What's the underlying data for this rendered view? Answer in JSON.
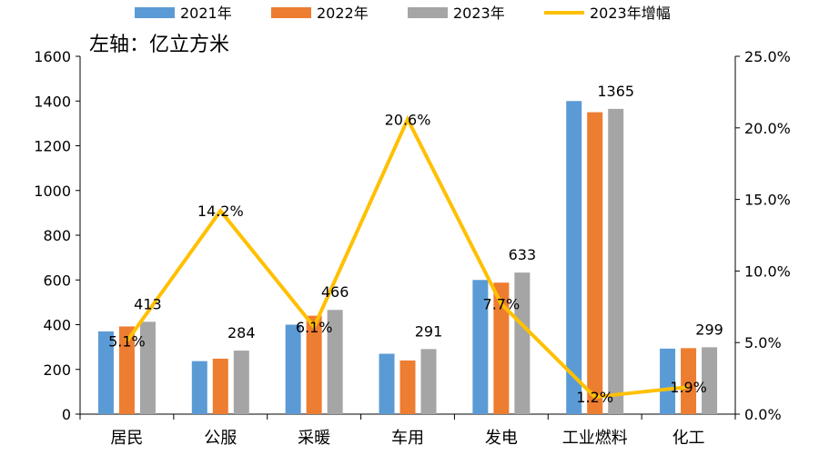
{
  "chart_data": {
    "type": "bar",
    "annotation": "左轴：亿立方米",
    "categories": [
      "居民",
      "公服",
      "采暖",
      "车用",
      "发电",
      "工业燃料",
      "化工"
    ],
    "series": [
      {
        "name": "2021年",
        "type": "bar",
        "axis": "left",
        "color": "#5B9BD5",
        "values": [
          370,
          237,
          400,
          270,
          600,
          1400,
          293
        ]
      },
      {
        "name": "2022年",
        "type": "bar",
        "axis": "left",
        "color": "#ED7D31",
        "values": [
          392,
          248,
          440,
          240,
          588,
          1350,
          295
        ]
      },
      {
        "name": "2023年",
        "type": "bar",
        "axis": "left",
        "color": "#A5A5A5",
        "values": [
          413,
          284,
          466,
          291,
          633,
          1365,
          299
        ],
        "data_labels": [
          "413",
          "284",
          "466",
          "291",
          "633",
          "1365",
          "299"
        ]
      },
      {
        "name": "2023年增幅",
        "type": "line",
        "axis": "right",
        "color": "#FFC000",
        "values": [
          5.1,
          14.2,
          6.1,
          20.6,
          7.7,
          1.2,
          1.9
        ],
        "data_labels": [
          "5.1%",
          "14.2%",
          "6.1%",
          "20.6%",
          "7.7%",
          "1.2%",
          "1.9%"
        ]
      }
    ],
    "y_left": {
      "ylim": [
        0,
        1600
      ],
      "ticks": [
        "0",
        "200",
        "400",
        "600",
        "800",
        "1000",
        "1200",
        "1400",
        "1600"
      ]
    },
    "y_right": {
      "ylim": [
        0,
        25
      ],
      "ticks": [
        "0.0%",
        "5.0%",
        "10.0%",
        "15.0%",
        "20.0%",
        "25.0%"
      ]
    },
    "legend": {
      "position": "top"
    },
    "grid": false
  }
}
